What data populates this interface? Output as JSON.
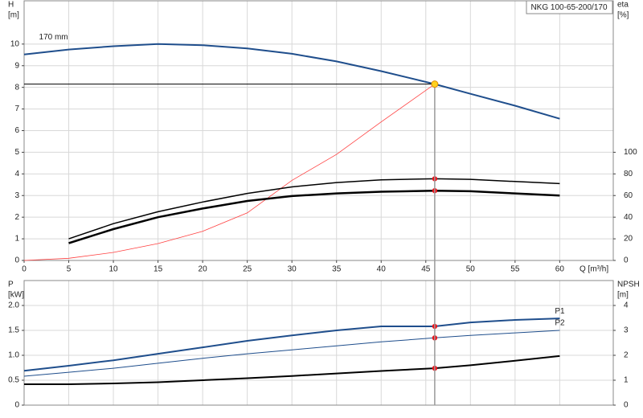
{
  "chart_data": [
    {
      "type": "line",
      "title": "NKG 100-65-200/170",
      "ylabel": [
        "H",
        "[m]"
      ],
      "y2label": [
        "eta",
        "[%]"
      ],
      "xlabel": "Q [m³/h]",
      "x": [
        0,
        5,
        10,
        15,
        20,
        25,
        30,
        35,
        40,
        46,
        50,
        55,
        60
      ],
      "xlim": [
        0,
        66
      ],
      "xticks": [
        0,
        5,
        10,
        15,
        20,
        25,
        30,
        35,
        40,
        45,
        50,
        55,
        60
      ],
      "ylim": [
        0,
        12
      ],
      "yticks": [
        0,
        1,
        2,
        3,
        4,
        5,
        6,
        7,
        8,
        9,
        10
      ],
      "y2lim": [
        0,
        240
      ],
      "y2ticks": [
        0,
        20,
        40,
        60,
        80,
        100
      ],
      "grid": true,
      "operating_point": {
        "Q": 46,
        "H": 8.15
      },
      "series": [
        {
          "name": "170 mm",
          "color": "#1f4e8c",
          "width": 2,
          "values": [
            9.52,
            9.75,
            9.9,
            10.0,
            9.95,
            9.8,
            9.55,
            9.2,
            8.75,
            8.15,
            7.7,
            7.15,
            6.55
          ]
        },
        {
          "color": "#ff4040",
          "width": 0.8,
          "values": [
            0,
            0.1,
            0.37,
            0.78,
            1.35,
            2.2,
            3.7,
            4.9,
            6.4,
            8.15,
            null,
            null,
            null
          ]
        },
        {
          "color": "#000000",
          "width": 1.5,
          "axis": "y2",
          "marker": true,
          "values": [
            null,
            20,
            34,
            45,
            54,
            62,
            68,
            72,
            74.5,
            75.5,
            75,
            73,
            71
          ]
        },
        {
          "color": "#000000",
          "width": 2.5,
          "axis": "y2",
          "marker": true,
          "values": [
            null,
            16,
            29,
            40,
            48,
            55,
            59.5,
            62,
            63.5,
            64.5,
            64,
            62,
            60
          ]
        }
      ]
    },
    {
      "type": "line",
      "ylabel": [
        "P",
        "[kW]"
      ],
      "y2label": [
        "NPSH",
        "[m]"
      ],
      "x": [
        0,
        5,
        10,
        15,
        20,
        25,
        30,
        35,
        40,
        46,
        50,
        55,
        60
      ],
      "xlim": [
        0,
        66
      ],
      "ylim": [
        0,
        2.5
      ],
      "yticks": [
        0,
        0.5,
        {
          "value": 1,
          "label": "1.0"
        },
        1.5,
        {
          "value": 2,
          "label": "2.0"
        }
      ],
      "y2lim": [
        0,
        5
      ],
      "y2ticks": [
        0,
        1,
        2,
        3,
        4
      ],
      "grid": true,
      "series": [
        {
          "name": "P1",
          "color": "#1f4e8c",
          "width": 2,
          "marker": true,
          "values": [
            0.69,
            0.79,
            0.9,
            1.03,
            1.16,
            1.29,
            1.4,
            1.5,
            1.58,
            1.58,
            1.66,
            1.71,
            1.74
          ]
        },
        {
          "name": "P2",
          "color": "#1f4e8c",
          "width": 1,
          "marker": true,
          "values": [
            0.58,
            0.66,
            0.74,
            0.84,
            0.94,
            1.03,
            1.11,
            1.19,
            1.27,
            1.35,
            1.4,
            1.45,
            1.5
          ]
        },
        {
          "color": "#000000",
          "width": 2,
          "axis": "y2",
          "marker": true,
          "values": [
            0.84,
            0.84,
            0.87,
            0.92,
            1.0,
            1.08,
            1.17,
            1.27,
            1.37,
            1.48,
            1.6,
            1.78,
            1.97
          ]
        }
      ]
    }
  ]
}
